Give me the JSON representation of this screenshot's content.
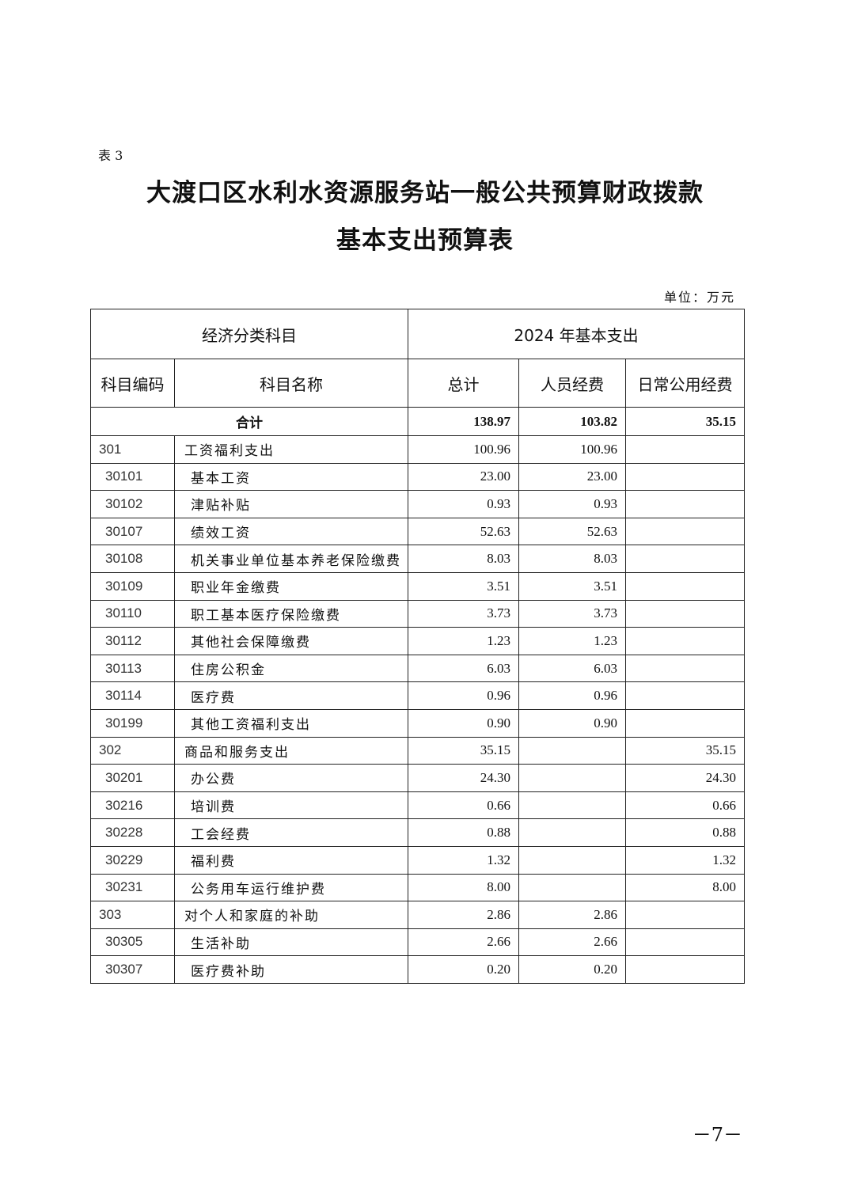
{
  "doc": {
    "table_label": "表 3",
    "title_line1": "大渡口区水利水资源服务站一般公共预算财政拨款",
    "title_line2": "基本支出预算表",
    "unit": "单位：万元",
    "page_number": "－7－"
  },
  "table": {
    "group_left": "经济分类科目",
    "group_right": "2024 年基本支出",
    "columns": [
      "科目编码",
      "科目名称",
      "总计",
      "人员经费",
      "日常公用经费"
    ],
    "total": {
      "label": "合计",
      "total": "138.97",
      "personnel": "103.82",
      "public": "35.15"
    },
    "rows": [
      {
        "code": "301",
        "name": "工资福利支出",
        "total": "100.96",
        "personnel": "100.96",
        "public": "",
        "level": 1
      },
      {
        "code": "30101",
        "name": "基本工资",
        "total": "23.00",
        "personnel": "23.00",
        "public": "",
        "level": 2
      },
      {
        "code": "30102",
        "name": "津贴补贴",
        "total": "0.93",
        "personnel": "0.93",
        "public": "",
        "level": 2
      },
      {
        "code": "30107",
        "name": "绩效工资",
        "total": "52.63",
        "personnel": "52.63",
        "public": "",
        "level": 2
      },
      {
        "code": "30108",
        "name": "机关事业单位基本养老保险缴费",
        "total": "8.03",
        "personnel": "8.03",
        "public": "",
        "level": 2
      },
      {
        "code": "30109",
        "name": "职业年金缴费",
        "total": "3.51",
        "personnel": "3.51",
        "public": "",
        "level": 2
      },
      {
        "code": "30110",
        "name": "职工基本医疗保险缴费",
        "total": "3.73",
        "personnel": "3.73",
        "public": "",
        "level": 2
      },
      {
        "code": "30112",
        "name": "其他社会保障缴费",
        "total": "1.23",
        "personnel": "1.23",
        "public": "",
        "level": 2
      },
      {
        "code": "30113",
        "name": "住房公积金",
        "total": "6.03",
        "personnel": "6.03",
        "public": "",
        "level": 2
      },
      {
        "code": "30114",
        "name": "医疗费",
        "total": "0.96",
        "personnel": "0.96",
        "public": "",
        "level": 2
      },
      {
        "code": "30199",
        "name": "其他工资福利支出",
        "total": "0.90",
        "personnel": "0.90",
        "public": "",
        "level": 2
      },
      {
        "code": "302",
        "name": "商品和服务支出",
        "total": "35.15",
        "personnel": "",
        "public": "35.15",
        "level": 1
      },
      {
        "code": "30201",
        "name": "办公费",
        "total": "24.30",
        "personnel": "",
        "public": "24.30",
        "level": 2
      },
      {
        "code": "30216",
        "name": "培训费",
        "total": "0.66",
        "personnel": "",
        "public": "0.66",
        "level": 2
      },
      {
        "code": "30228",
        "name": "工会经费",
        "total": "0.88",
        "personnel": "",
        "public": "0.88",
        "level": 2
      },
      {
        "code": "30229",
        "name": "福利费",
        "total": "1.32",
        "personnel": "",
        "public": "1.32",
        "level": 2
      },
      {
        "code": "30231",
        "name": "公务用车运行维护费",
        "total": "8.00",
        "personnel": "",
        "public": "8.00",
        "level": 2
      },
      {
        "code": "303",
        "name": "对个人和家庭的补助",
        "total": "2.86",
        "personnel": "2.86",
        "public": "",
        "level": 1
      },
      {
        "code": "30305",
        "name": "生活补助",
        "total": "2.66",
        "personnel": "2.66",
        "public": "",
        "level": 2
      },
      {
        "code": "30307",
        "name": "医疗费补助",
        "total": "0.20",
        "personnel": "0.20",
        "public": "",
        "level": 2
      }
    ]
  }
}
